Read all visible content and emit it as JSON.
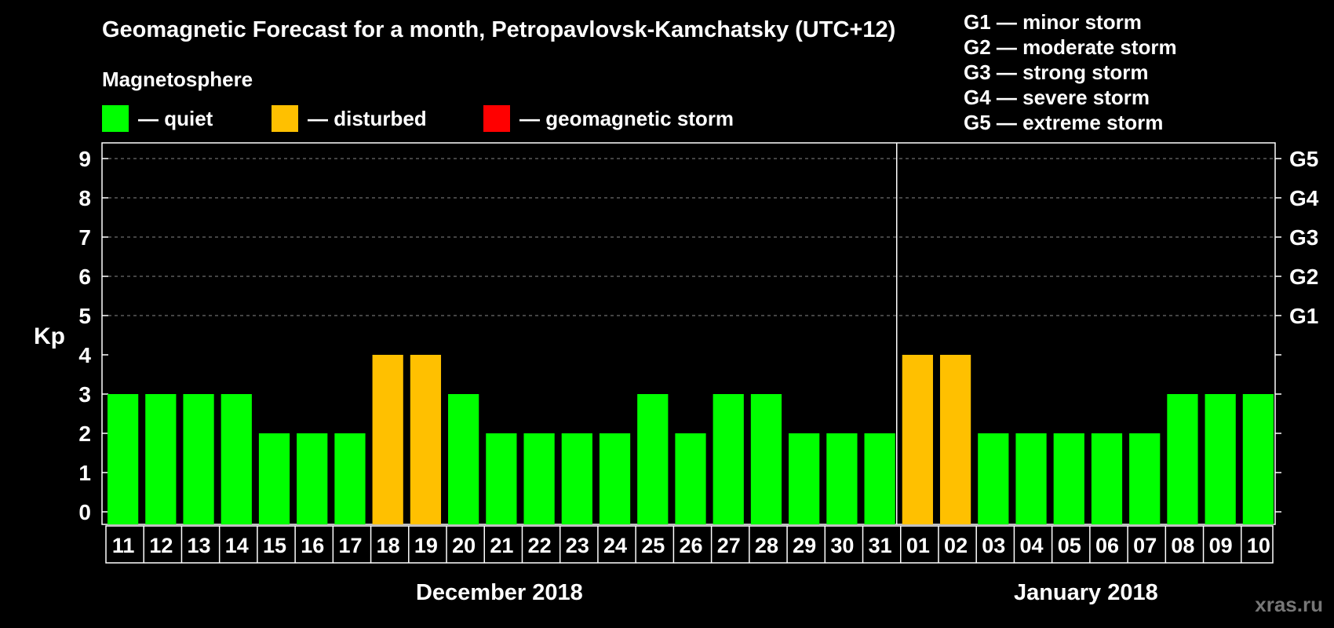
{
  "title": "Geomagnetic Forecast for a month, Petropavlovsk-Kamchatsky (UTC+12)",
  "legend": {
    "heading": "Magnetosphere",
    "items": [
      {
        "label": "— quiet",
        "color": "#00ff00"
      },
      {
        "label": "— disturbed",
        "color": "#ffc000"
      },
      {
        "label": "— geomagnetic storm",
        "color": "#ff0000"
      }
    ]
  },
  "storm_scale": [
    "G1 — minor storm",
    "G2 — moderate storm",
    "G3 — strong storm",
    "G4 — severe storm",
    "G5 — extreme storm"
  ],
  "watermark": "xras.ru",
  "chart_data": {
    "type": "bar",
    "ylabel": "Kp",
    "ylim": [
      0,
      9
    ],
    "yticks": [
      0,
      1,
      2,
      3,
      4,
      5,
      6,
      7,
      8,
      9
    ],
    "right_ticks": [
      {
        "kp": 5,
        "label": "G1"
      },
      {
        "kp": 6,
        "label": "G2"
      },
      {
        "kp": 7,
        "label": "G3"
      },
      {
        "kp": 8,
        "label": "G4"
      },
      {
        "kp": 9,
        "label": "G5"
      }
    ],
    "grid": "dashed horizontal at Kp 5-9",
    "categories": [
      "11",
      "12",
      "13",
      "14",
      "15",
      "16",
      "17",
      "18",
      "19",
      "20",
      "21",
      "22",
      "23",
      "24",
      "25",
      "26",
      "27",
      "28",
      "29",
      "30",
      "31",
      "01",
      "02",
      "03",
      "04",
      "05",
      "06",
      "07",
      "08",
      "09",
      "10"
    ],
    "values": [
      3,
      3,
      3,
      3,
      2,
      2,
      2,
      4,
      4,
      3,
      2,
      2,
      2,
      2,
      3,
      2,
      3,
      3,
      2,
      2,
      2,
      4,
      4,
      2,
      2,
      2,
      2,
      2,
      3,
      3,
      3
    ],
    "months": [
      {
        "label": "December 2018",
        "start": 0,
        "end": 20
      },
      {
        "label": "January 2018",
        "start": 21,
        "end": 30
      }
    ],
    "colors": {
      "quiet": "#00ff00",
      "disturbed": "#ffc000",
      "storm": "#ff0000"
    }
  }
}
